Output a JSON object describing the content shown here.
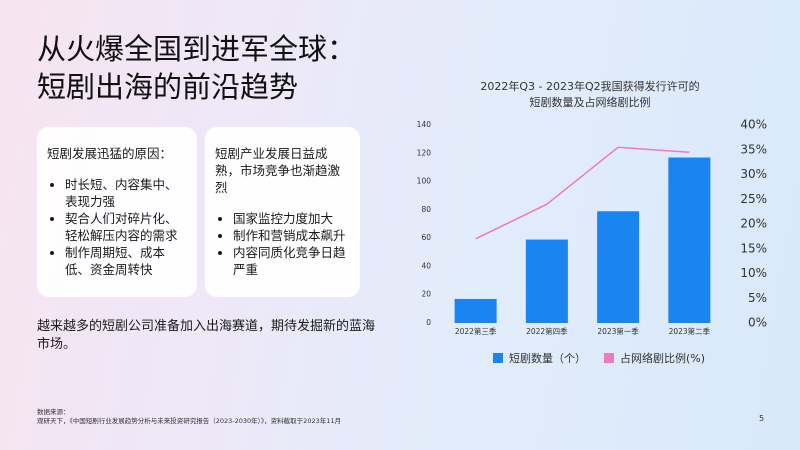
{
  "title_lines": [
    "从火爆全国到进军全球：",
    "短剧出海的前沿趋势"
  ],
  "cards": [
    {
      "heading": "短剧发展迅猛的原因：",
      "bullets": [
        "时长短、内容集中、表现力强",
        "契合人们对碎片化、轻松解压内容的需求",
        "制作周期短、成本低、资金周转快"
      ]
    },
    {
      "heading": "短剧产业发展日益成熟，市场竞争也渐趋激烈",
      "bullets": [
        "国家监控力度加大",
        "制作和营销成本飙升",
        "内容同质化竞争日趋严重"
      ]
    }
  ],
  "summary": "越来越多的短剧公司准备加入出海赛道，期待发掘新的蓝海市场。",
  "source": [
    "数据来源：",
    "观研天下，《中国短剧行业发展趋势分析与未来投资研究报告（2023-2030年）》，资料截取于2023年11月"
  ],
  "page_number": "5",
  "chart_data": {
    "type": "bar",
    "title": [
      "2022年Q3 - 2023年Q2我国获得发行许可的",
      "短剧数量及占网络剧比例"
    ],
    "categories": [
      "2022第三季",
      "2022第四季",
      "2023第一季",
      "2023第二季"
    ],
    "series": [
      {
        "name": "短剧数量（个）",
        "type": "bar",
        "color": "#1a84f0",
        "values": [
          17,
          59,
          79,
          117
        ]
      },
      {
        "name": "占网络剧比例(%)",
        "type": "line",
        "axis": "y2",
        "color": "#f07ac0",
        "values": [
          17,
          24,
          35.5,
          34.5
        ]
      }
    ],
    "ylim": [
      0,
      140
    ],
    "yticks": [
      0,
      20,
      40,
      60,
      80,
      100,
      120,
      140
    ],
    "y2lim": [
      0,
      40
    ],
    "y2ticks": [
      {
        "value": 0,
        "label": "0%"
      },
      {
        "value": 5,
        "label": "5%"
      },
      {
        "value": 10,
        "label": "10%"
      },
      {
        "value": 15,
        "label": "15%"
      },
      {
        "value": 20,
        "label": "20%"
      },
      {
        "value": 25,
        "label": "25%"
      },
      {
        "value": 30,
        "label": "30%"
      },
      {
        "value": 35,
        "label": "35%"
      },
      {
        "value": 40,
        "label": "40%"
      }
    ],
    "grid": false,
    "legend": "bottom"
  }
}
